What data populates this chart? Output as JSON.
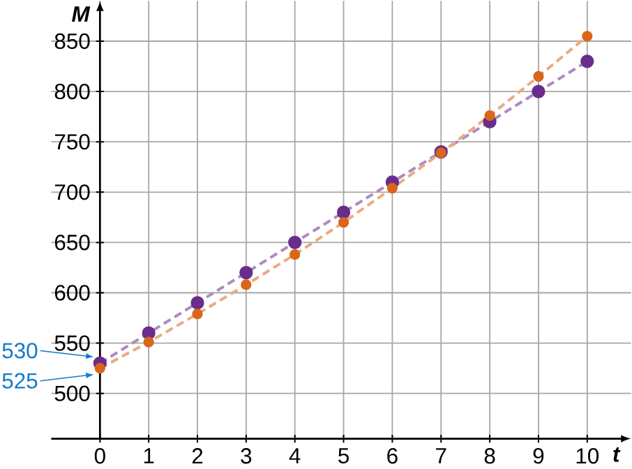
{
  "chart_data": {
    "type": "line",
    "xlabel": "t",
    "ylabel": "M",
    "x": [
      0,
      1,
      2,
      3,
      4,
      5,
      6,
      7,
      8,
      9,
      10
    ],
    "series": [
      {
        "color": "#6a2d8c",
        "values": [
          530,
          560,
          590,
          620,
          650,
          680,
          710,
          740,
          770,
          800,
          830
        ]
      },
      {
        "color": "#d9661a",
        "values": [
          525,
          551,
          579,
          608,
          638,
          670,
          704,
          739,
          776,
          815,
          855
        ]
      }
    ],
    "xlim": [
      -1,
      10.9
    ],
    "ylim": [
      455,
      890
    ],
    "xticks": [
      0,
      1,
      2,
      3,
      4,
      5,
      6,
      7,
      8,
      9,
      10
    ],
    "yticks": [
      500,
      550,
      600,
      650,
      700,
      750,
      800,
      850
    ],
    "grid": true,
    "marker": "circle",
    "line_style": "dashed",
    "annotations": [
      {
        "text": "530",
        "x": 0,
        "y": 530
      },
      {
        "text": "525",
        "x": 0,
        "y": 525
      }
    ]
  }
}
